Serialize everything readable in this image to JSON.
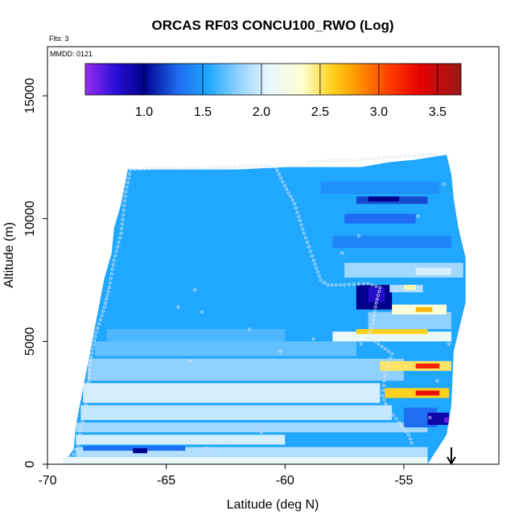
{
  "chart_data": {
    "type": "heatmap",
    "title": "ORCAS RF03 CONCU100_RWO (Log)",
    "annotations": {
      "flights": "Flts: 3",
      "date": "MMDD: 0121"
    },
    "xlabel": "Latitude (deg N)",
    "ylabel": "Altitude (m)",
    "xlim": [
      -70,
      -51
    ],
    "ylim": [
      0,
      17000
    ],
    "x_ticks": [
      -70,
      -65,
      -60,
      -55
    ],
    "x_tick_labels": [
      "-70",
      "-65",
      "-60",
      "-55"
    ],
    "y_ticks": [
      0,
      5000,
      10000,
      15000
    ],
    "y_tick_labels": [
      "0",
      "5000",
      "10000",
      "15000"
    ],
    "colorbar": {
      "range": [
        0.5,
        3.7
      ],
      "ticks": [
        1.0,
        1.5,
        2.0,
        2.5,
        3.0,
        3.5
      ],
      "tick_labels": [
        "1.0",
        "1.5",
        "2.0",
        "2.5",
        "3.0",
        "3.5"
      ],
      "placement": "top-inset",
      "stops": [
        {
          "value": 0.5,
          "color": "#9a2cf0"
        },
        {
          "value": 0.75,
          "color": "#2a0fd8"
        },
        {
          "value": 1.0,
          "color": "#00008c"
        },
        {
          "value": 1.3,
          "color": "#1f6ef2"
        },
        {
          "value": 1.55,
          "color": "#20a7ff"
        },
        {
          "value": 1.8,
          "color": "#8fd0ff"
        },
        {
          "value": 2.05,
          "color": "#e6f6ff"
        },
        {
          "value": 2.35,
          "color": "#ffffd0"
        },
        {
          "value": 2.6,
          "color": "#ffd21e"
        },
        {
          "value": 2.8,
          "color": "#ff9a00"
        },
        {
          "value": 3.1,
          "color": "#ff3a00"
        },
        {
          "value": 3.35,
          "color": "#e60000"
        },
        {
          "value": 3.7,
          "color": "#9a1818"
        }
      ]
    },
    "envelope": {
      "left": [
        [
          0,
          -69.4
        ],
        [
          600,
          -68.9
        ],
        [
          1600,
          -68.8
        ],
        [
          2600,
          -68.6
        ],
        [
          3600,
          -68.4
        ],
        [
          4600,
          -68.2
        ],
        [
          5600,
          -68.0
        ],
        [
          6600,
          -67.8
        ],
        [
          7600,
          -67.6
        ],
        [
          8600,
          -67.3
        ],
        [
          9600,
          -67.2
        ],
        [
          10600,
          -66.9
        ],
        [
          11600,
          -66.7
        ],
        [
          12100,
          -66.6
        ]
      ],
      "right": [
        [
          0,
          -54.0
        ],
        [
          1200,
          -53.2
        ],
        [
          2400,
          -53.0
        ],
        [
          4600,
          -52.9
        ],
        [
          6600,
          -52.4
        ],
        [
          8400,
          -52.4
        ],
        [
          9600,
          -52.7
        ],
        [
          10800,
          -52.9
        ],
        [
          11800,
          -53.0
        ],
        [
          12600,
          -53.2
        ],
        [
          12400,
          -54.5
        ],
        [
          12300,
          -55.6
        ],
        [
          12100,
          -56.8
        ],
        [
          12100,
          -59.9
        ],
        [
          12000,
          -62.0
        ],
        [
          12000,
          -66.6
        ]
      ]
    },
    "background_value": 1.55,
    "bands": [
      {
        "y0": 0,
        "y1": 300,
        "x0": -69.4,
        "x1": -54.0,
        "v": 2.1
      },
      {
        "y0": 300,
        "y1": 700,
        "x0": -68.8,
        "x1": -54.0,
        "v": 1.9
      },
      {
        "y0": 550,
        "y1": 750,
        "x0": -68.5,
        "x1": -64.2,
        "v": 1.3
      },
      {
        "y0": 450,
        "y1": 650,
        "x0": -66.4,
        "x1": -65.8,
        "v": 1.0
      },
      {
        "y0": 800,
        "y1": 1200,
        "x0": -68.8,
        "x1": -60.0,
        "v": 2.0
      },
      {
        "y0": 1300,
        "y1": 1700,
        "x0": -68.8,
        "x1": -54.0,
        "v": 1.85
      },
      {
        "y0": 1800,
        "y1": 2400,
        "x0": -68.6,
        "x1": -55.5,
        "v": 1.95
      },
      {
        "y0": 2500,
        "y1": 3300,
        "x0": -68.5,
        "x1": -56.0,
        "v": 2.0
      },
      {
        "y0": 3400,
        "y1": 4300,
        "x0": -68.3,
        "x1": -55.0,
        "v": 1.8
      },
      {
        "y0": 4400,
        "y1": 5000,
        "x0": -68.0,
        "x1": -57.0,
        "v": 1.7
      },
      {
        "y0": 5000,
        "y1": 5500,
        "x0": -67.5,
        "x1": -60.0,
        "v": 1.65
      },
      {
        "y0": 1500,
        "y1": 2300,
        "x0": -55.0,
        "x1": -53.6,
        "v": 1.3
      },
      {
        "y0": 1600,
        "y1": 2100,
        "x0": -54.0,
        "x1": -53.1,
        "v": 0.9
      },
      {
        "y0": 1700,
        "y1": 1900,
        "x0": -53.3,
        "x1": -53.0,
        "v": 0.6
      },
      {
        "y0": 2700,
        "y1": 3100,
        "x0": -55.8,
        "x1": -53.1,
        "v": 2.6
      },
      {
        "y0": 2800,
        "y1": 3000,
        "x0": -54.5,
        "x1": -53.5,
        "v": 3.3
      },
      {
        "y0": 3800,
        "y1": 4200,
        "x0": -56.0,
        "x1": -53.0,
        "v": 2.5
      },
      {
        "y0": 3900,
        "y1": 4100,
        "x0": -54.5,
        "x1": -53.5,
        "v": 3.2
      },
      {
        "y0": 5000,
        "y1": 5400,
        "x0": -58.0,
        "x1": -53.0,
        "v": 2.1
      },
      {
        "y0": 5300,
        "y1": 5500,
        "x0": -57.0,
        "x1": -54.0,
        "v": 2.6
      },
      {
        "y0": 5500,
        "y1": 6200,
        "x0": -56.5,
        "x1": -53.0,
        "v": 1.8
      },
      {
        "y0": 6100,
        "y1": 6500,
        "x0": -55.5,
        "x1": -53.2,
        "v": 2.3
      },
      {
        "y0": 6200,
        "y1": 6400,
        "x0": -54.5,
        "x1": -53.8,
        "v": 2.7
      },
      {
        "y0": 6300,
        "y1": 7300,
        "x0": -57.0,
        "x1": -55.5,
        "v": 1.0
      },
      {
        "y0": 6600,
        "y1": 7200,
        "x0": -56.5,
        "x1": -55.8,
        "v": 0.8
      },
      {
        "y0": 7000,
        "y1": 7300,
        "x0": -55.6,
        "x1": -54.2,
        "v": 1.9
      },
      {
        "y0": 7100,
        "y1": 7300,
        "x0": -55.0,
        "x1": -54.5,
        "v": 2.4
      },
      {
        "y0": 7600,
        "y1": 8200,
        "x0": -57.5,
        "x1": -52.5,
        "v": 1.85
      },
      {
        "y0": 7700,
        "y1": 8000,
        "x0": -54.5,
        "x1": -53.0,
        "v": 2.0
      },
      {
        "y0": 8800,
        "y1": 9300,
        "x0": -58.0,
        "x1": -53.0,
        "v": 1.4
      },
      {
        "y0": 9800,
        "y1": 10200,
        "x0": -57.5,
        "x1": -54.5,
        "v": 1.3
      },
      {
        "y0": 10600,
        "y1": 10900,
        "x0": -57.0,
        "x1": -54.0,
        "v": 1.2
      },
      {
        "y0": 10700,
        "y1": 10900,
        "x0": -56.5,
        "x1": -55.2,
        "v": 1.0
      },
      {
        "y0": 11000,
        "y1": 11500,
        "x0": -58.5,
        "x1": -53.5,
        "v": 1.45
      }
    ],
    "flight_track": [
      [
        -69.3,
        200
      ],
      [
        -68.9,
        400
      ],
      [
        -68.7,
        800
      ],
      [
        -68.6,
        1400
      ],
      [
        -68.4,
        2200
      ],
      [
        -68.3,
        3000
      ],
      [
        -68.2,
        4200
      ],
      [
        -68.0,
        5200
      ],
      [
        -67.6,
        6400
      ],
      [
        -67.4,
        7200
      ],
      [
        -67.2,
        8300
      ],
      [
        -66.9,
        9400
      ],
      [
        -66.7,
        11100
      ],
      [
        -66.5,
        12000
      ],
      [
        -65.5,
        12050
      ],
      [
        -64.0,
        12050
      ],
      [
        -62.5,
        12100
      ],
      [
        -61.0,
        12150
      ],
      [
        -60.4,
        12100
      ],
      [
        -60.1,
        11500
      ],
      [
        -59.6,
        10600
      ],
      [
        -59.2,
        9400
      ],
      [
        -58.8,
        8300
      ],
      [
        -58.5,
        7500
      ],
      [
        -58.2,
        7300
      ],
      [
        -57.5,
        7300
      ],
      [
        -56.5,
        7350
      ],
      [
        -56.0,
        7200
      ],
      [
        -56.2,
        6400
      ],
      [
        -56.3,
        5700
      ],
      [
        -56.5,
        5200
      ],
      [
        -55.5,
        4500
      ],
      [
        -55.8,
        3600
      ],
      [
        -55.9,
        2800
      ],
      [
        -55.7,
        2300
      ],
      [
        -55.2,
        1700
      ],
      [
        -54.8,
        1200
      ],
      [
        -54.6,
        700
      ],
      [
        -59.0,
        12300
      ],
      [
        -57.0,
        12400
      ],
      [
        -55.5,
        12500
      ],
      [
        -54.0,
        12600
      ],
      [
        -53.5,
        12600
      ]
    ],
    "flight_track_extra": [
      [
        -65.2,
        300
      ],
      [
        -64.4,
        450
      ],
      [
        -63.3,
        650
      ],
      [
        -62.3,
        950
      ],
      [
        -61.0,
        1300
      ],
      [
        -63.8,
        7100
      ],
      [
        -63.5,
        6200
      ],
      [
        -64.5,
        6400
      ],
      [
        -64.0,
        4200
      ],
      [
        -61.5,
        5500
      ],
      [
        -60.2,
        4600
      ],
      [
        -58.8,
        5100
      ],
      [
        -57.6,
        8600
      ],
      [
        -56.9,
        9300
      ],
      [
        -54.4,
        10100
      ],
      [
        -53.3,
        11400
      ],
      [
        -53.1,
        4900
      ],
      [
        -53.6,
        3400
      ],
      [
        -53.9,
        1900
      ],
      [
        -56.8,
        4900
      ]
    ],
    "marker": {
      "x": -53.0,
      "direction": "down"
    }
  }
}
